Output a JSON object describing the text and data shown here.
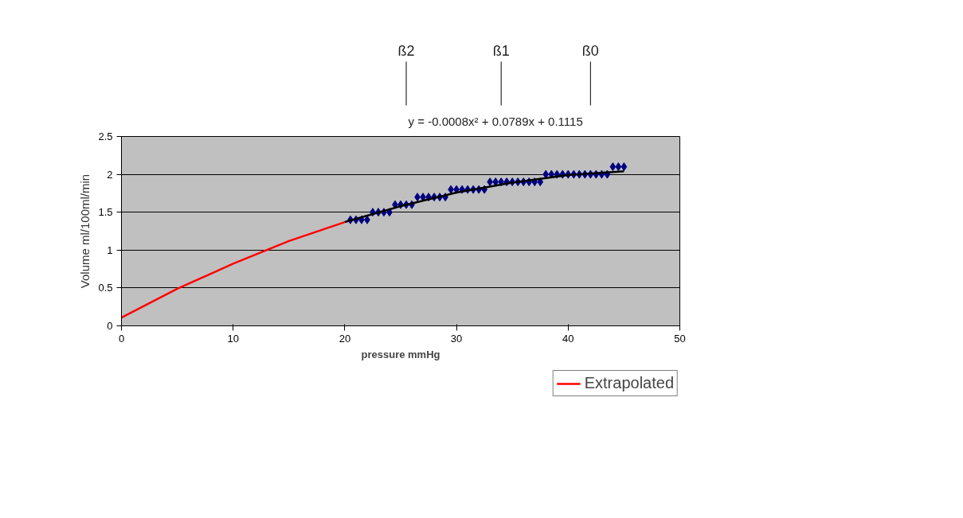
{
  "chart_data": {
    "type": "scatter",
    "xlabel": "pressure mmHg",
    "ylabel": "Volume ml/100ml/min",
    "xlim": [
      0,
      50
    ],
    "ylim": [
      0,
      2.5
    ],
    "xticks": [
      0,
      10,
      20,
      30,
      40,
      50
    ],
    "yticks": [
      0,
      0.5,
      1,
      1.5,
      2,
      2.5
    ],
    "grid": "y",
    "legend": "bottom right",
    "annotations": [
      "y = -0.0008x² + 0.0789x + 0.1115",
      "ß2",
      "ß1",
      "ß0"
    ],
    "series": [
      {
        "marker": "diamond",
        "color": "#000080",
        "x": [
          20.5,
          21,
          21.5,
          22,
          22.5,
          23,
          23.5,
          24,
          24.5,
          25,
          25.5,
          26,
          26.5,
          27,
          27.5,
          28,
          28.5,
          29,
          29.5,
          30,
          30.5,
          31,
          31.5,
          32,
          32.5,
          33,
          33.5,
          34,
          34.5,
          35,
          35.5,
          36,
          36.5,
          37,
          37.5,
          38,
          38.5,
          39,
          39.5,
          40,
          40.5,
          41,
          41.5,
          42,
          42.5,
          43,
          43.5,
          44,
          44.5,
          45
        ],
        "values": [
          1.4,
          1.4,
          1.4,
          1.4,
          1.5,
          1.5,
          1.5,
          1.5,
          1.6,
          1.6,
          1.6,
          1.6,
          1.7,
          1.7,
          1.7,
          1.7,
          1.7,
          1.7,
          1.8,
          1.8,
          1.8,
          1.8,
          1.8,
          1.8,
          1.8,
          1.9,
          1.9,
          1.9,
          1.9,
          1.9,
          1.9,
          1.9,
          1.9,
          1.9,
          1.9,
          2.0,
          2.0,
          2.0,
          2.0,
          2.0,
          2.0,
          2.0,
          2.0,
          2.0,
          2.0,
          2.0,
          2.0,
          2.1,
          2.1,
          2.1
        ]
      },
      {
        "type": "line",
        "color": "#000000",
        "x": [
          20,
          25,
          30,
          35,
          40,
          45
        ],
        "values": [
          1.37,
          1.58,
          1.76,
          1.89,
          1.99,
          2.04
        ]
      },
      {
        "type": "line",
        "name": "Extrapolated",
        "color": "#ff0000",
        "x": [
          0,
          5,
          10,
          15,
          20
        ],
        "values": [
          0.11,
          0.49,
          0.82,
          1.12,
          1.37
        ]
      }
    ]
  }
}
